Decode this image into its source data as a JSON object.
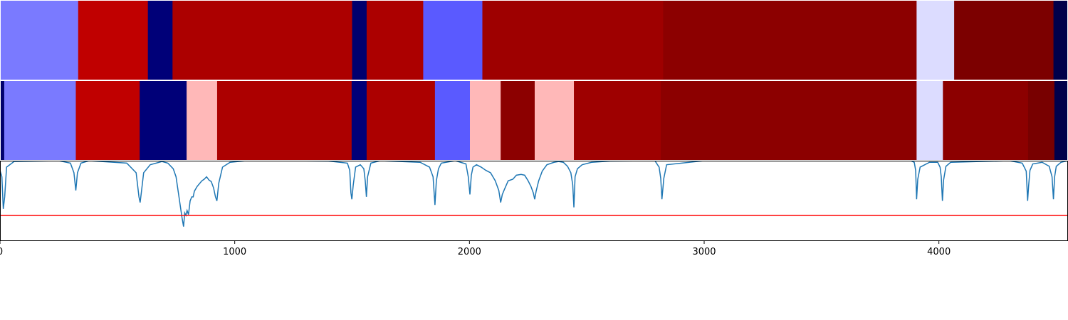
{
  "chart_data": [
    {
      "type": "heatmap",
      "title": "",
      "xlim": [
        0,
        4550
      ],
      "segments": [
        {
          "start": 0,
          "end": 333,
          "color": "#7a7aff"
        },
        {
          "start": 333,
          "end": 630,
          "color": "#c00000"
        },
        {
          "start": 630,
          "end": 735,
          "color": "#000078"
        },
        {
          "start": 735,
          "end": 1500,
          "color": "#ac0000"
        },
        {
          "start": 1500,
          "end": 1562,
          "color": "#00006e"
        },
        {
          "start": 1562,
          "end": 1803,
          "color": "#ac0000"
        },
        {
          "start": 1803,
          "end": 2055,
          "color": "#5a5aff"
        },
        {
          "start": 2055,
          "end": 2825,
          "color": "#9e0000"
        },
        {
          "start": 2825,
          "end": 3905,
          "color": "#8c0000"
        },
        {
          "start": 3905,
          "end": 4065,
          "color": "#dcdcff"
        },
        {
          "start": 4065,
          "end": 4488,
          "color": "#7c0000"
        },
        {
          "start": 4488,
          "end": 4550,
          "color": "#00004a"
        }
      ]
    },
    {
      "type": "heatmap",
      "title": "",
      "xlim": [
        0,
        4550
      ],
      "segments": [
        {
          "start": 0,
          "end": 18,
          "color": "#00006e"
        },
        {
          "start": 18,
          "end": 323,
          "color": "#7a7aff"
        },
        {
          "start": 323,
          "end": 595,
          "color": "#c00000"
        },
        {
          "start": 595,
          "end": 795,
          "color": "#000078"
        },
        {
          "start": 795,
          "end": 925,
          "color": "#ffb8b8"
        },
        {
          "start": 925,
          "end": 1498,
          "color": "#ac0000"
        },
        {
          "start": 1498,
          "end": 1562,
          "color": "#000078"
        },
        {
          "start": 1562,
          "end": 1853,
          "color": "#ac0000"
        },
        {
          "start": 1853,
          "end": 2002,
          "color": "#5a5aff"
        },
        {
          "start": 2002,
          "end": 2133,
          "color": "#ffb8b8"
        },
        {
          "start": 2133,
          "end": 2278,
          "color": "#8c0000"
        },
        {
          "start": 2278,
          "end": 2445,
          "color": "#ffb8b8"
        },
        {
          "start": 2445,
          "end": 2815,
          "color": "#9e0000"
        },
        {
          "start": 2815,
          "end": 3905,
          "color": "#8c0000"
        },
        {
          "start": 3905,
          "end": 4017,
          "color": "#dcdcff"
        },
        {
          "start": 4017,
          "end": 4380,
          "color": "#8c0000"
        },
        {
          "start": 4380,
          "end": 4492,
          "color": "#780000"
        },
        {
          "start": 4492,
          "end": 4550,
          "color": "#00004a"
        }
      ]
    },
    {
      "type": "line",
      "title": "",
      "xlabel": "",
      "ylabel": "",
      "xlim": [
        0,
        4550
      ],
      "ylim": [
        0,
        1
      ],
      "xticks": [
        0,
        1000,
        2000,
        3000,
        4000
      ],
      "xtick_labels": [
        "0",
        "1000",
        "2000",
        "3000",
        "4000"
      ],
      "threshold": {
        "value": 0.32,
        "color": "#ff0000"
      },
      "series": [
        {
          "color": "#1f77b4",
          "x": [
            0,
            8,
            14,
            20,
            28,
            60,
            250,
            300,
            315,
            323,
            330,
            345,
            380,
            540,
            580,
            592,
            597,
            602,
            612,
            640,
            690,
            715,
            738,
            750,
            760,
            775,
            782,
            787,
            792,
            797,
            803,
            810,
            817,
            823,
            828,
            840,
            860,
            870,
            880,
            890,
            900,
            910,
            918,
            924,
            932,
            948,
            980,
            1050,
            1200,
            1400,
            1480,
            1490,
            1495,
            1499,
            1505,
            1515,
            1535,
            1550,
            1556,
            1561,
            1566,
            1580,
            1620,
            1790,
            1830,
            1845,
            1853,
            1859,
            1868,
            1880,
            1940,
            1985,
            1995,
            2002,
            2008,
            2015,
            2030,
            2050,
            2070,
            2090,
            2100,
            2110,
            2125,
            2133,
            2140,
            2150,
            2165,
            2185,
            2200,
            2220,
            2235,
            2250,
            2262,
            2272,
            2278,
            2284,
            2295,
            2310,
            2330,
            2360,
            2380,
            2400,
            2418,
            2432,
            2440,
            2445,
            2450,
            2460,
            2480,
            2520,
            2600,
            2790,
            2808,
            2815,
            2820,
            2828,
            2840,
            3000,
            3500,
            3880,
            3895,
            3901,
            3905,
            3910,
            3920,
            3960,
            3995,
            4005,
            4010,
            4015,
            4020,
            4030,
            4050,
            4300,
            4355,
            4372,
            4378,
            4382,
            4388,
            4400,
            4440,
            4470,
            4482,
            4488,
            4493,
            4500,
            4520,
            4550
          ],
          "y": [
            0.88,
            0.8,
            0.4,
            0.55,
            0.92,
            0.99,
            1.0,
            0.97,
            0.85,
            0.63,
            0.85,
            0.97,
            1.0,
            0.97,
            0.85,
            0.55,
            0.48,
            0.6,
            0.85,
            0.95,
            0.99,
            0.97,
            0.9,
            0.8,
            0.6,
            0.3,
            0.18,
            0.35,
            0.32,
            0.38,
            0.33,
            0.5,
            0.55,
            0.55,
            0.62,
            0.68,
            0.75,
            0.77,
            0.8,
            0.76,
            0.74,
            0.66,
            0.55,
            0.5,
            0.72,
            0.92,
            0.98,
            1.0,
            1.0,
            0.995,
            0.97,
            0.88,
            0.6,
            0.52,
            0.7,
            0.92,
            0.95,
            0.9,
            0.75,
            0.55,
            0.8,
            0.97,
            1.0,
            0.98,
            0.92,
            0.8,
            0.45,
            0.75,
            0.9,
            0.97,
            1.0,
            0.96,
            0.8,
            0.58,
            0.82,
            0.92,
            0.95,
            0.92,
            0.88,
            0.85,
            0.8,
            0.75,
            0.63,
            0.48,
            0.58,
            0.65,
            0.75,
            0.77,
            0.82,
            0.83,
            0.82,
            0.75,
            0.68,
            0.6,
            0.52,
            0.62,
            0.75,
            0.87,
            0.95,
            0.98,
            0.99,
            0.98,
            0.93,
            0.85,
            0.7,
            0.42,
            0.8,
            0.9,
            0.95,
            0.98,
            0.995,
            1.0,
            0.92,
            0.78,
            0.52,
            0.78,
            0.95,
            1.0,
            1.0,
            1.0,
            0.98,
            0.88,
            0.52,
            0.77,
            0.92,
            0.98,
            0.98,
            0.92,
            0.8,
            0.5,
            0.76,
            0.93,
            0.98,
            1.0,
            0.97,
            0.87,
            0.5,
            0.68,
            0.88,
            0.96,
            0.98,
            0.93,
            0.8,
            0.52,
            0.8,
            0.93,
            0.98,
            1.0
          ]
        }
      ]
    }
  ]
}
